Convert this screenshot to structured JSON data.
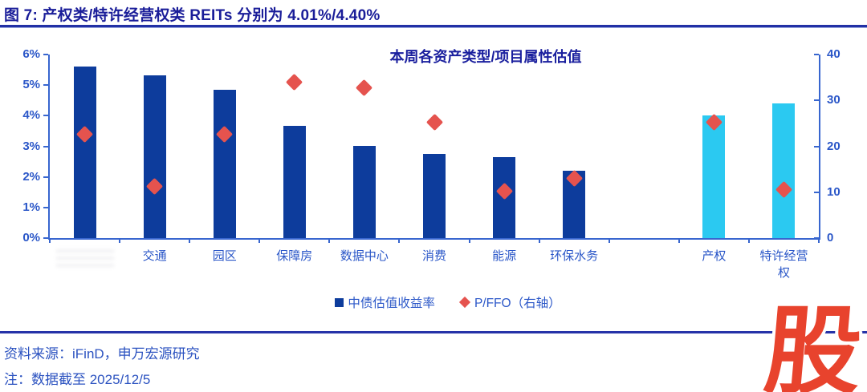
{
  "figure": {
    "title": "图 7: 产权类/特许经营权类 REITs 分别为 4.01%/4.40%"
  },
  "chart_data": {
    "type": "bar",
    "title": "本周各资产类型/项目属性估值",
    "categories": [
      "",
      "交通",
      "园区",
      "保障房",
      "数据中心",
      "消费",
      "能源",
      "环保水务",
      "",
      "产权",
      "特许经营权"
    ],
    "series": [
      {
        "name": "中债估值收益率",
        "type": "bar",
        "axis": "left",
        "values": [
          5.6,
          5.31,
          4.86,
          3.66,
          3.01,
          2.74,
          2.64,
          2.19,
          null,
          4.01,
          4.4
        ],
        "colors": [
          "#0d3c9c",
          "#0d3c9c",
          "#0d3c9c",
          "#0d3c9c",
          "#0d3c9c",
          "#0d3c9c",
          "#0d3c9c",
          "#0d3c9c",
          null,
          "#2bc9f1",
          "#2bc9f1"
        ]
      },
      {
        "name": "P/FFO（右轴）",
        "type": "scatter",
        "axis": "right",
        "values": [
          22.7,
          11.2,
          22.6,
          34.0,
          32.8,
          25.2,
          10.3,
          13.1,
          null,
          25.3,
          10.6
        ]
      }
    ],
    "left_axis": {
      "min": 0,
      "max": 6,
      "ticks": [
        "6%",
        "5%",
        "4%",
        "3%",
        "2%",
        "1%",
        "0%"
      ]
    },
    "right_axis": {
      "min": 0,
      "max": 40,
      "ticks": [
        "40",
        "30",
        "20",
        "10",
        "0"
      ]
    },
    "grid": "off",
    "legend_position": "bottom",
    "legend": [
      {
        "label": "中债估值收益率",
        "marker": "square",
        "color": "#0d3c9c"
      },
      {
        "label": "P/FFO（右轴）",
        "marker": "diamond",
        "color": "#e5534e"
      }
    ],
    "notes": "第一个类别标签被白色涂抹遮挡，不可读；第九个类别为空白间隔"
  },
  "footer": {
    "source": "资料来源：iFinD，申万宏源研究",
    "note": "注：数据截至 2025/12/5"
  },
  "watermark": {
    "text": "股",
    "color": "#e8432d"
  },
  "colors": {
    "title_navy": "#1a1d99",
    "axis_blue": "#3866cf",
    "label_blue": "#2b57c8",
    "bar_navy": "#0d3c9c",
    "bar_cyan": "#2bc9f1",
    "diamond_red": "#e5534e",
    "rule_blue": "#2633a8",
    "watermark_red": "#e8432d"
  }
}
